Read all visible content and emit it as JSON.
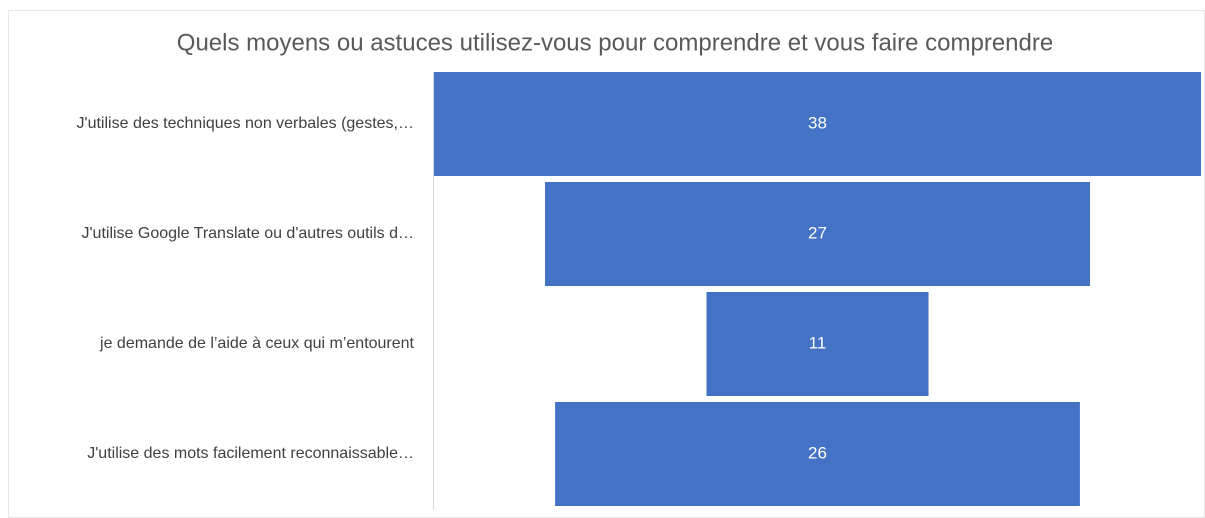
{
  "chart_data": {
    "type": "funnel",
    "title": "Quels moyens ou astuces utilisez-vous pour comprendre et vous faire comprendre",
    "categories": [
      "J'utilise des techniques non verbales (gestes,…",
      "J'utilise Google Translate ou d'autres outils d…",
      "je demande de l’aide à ceux qui m’entourent",
      "J'utilise des mots facilement reconnaissable…"
    ],
    "values": [
      38,
      27,
      11,
      26
    ],
    "color": "#4472c4"
  }
}
